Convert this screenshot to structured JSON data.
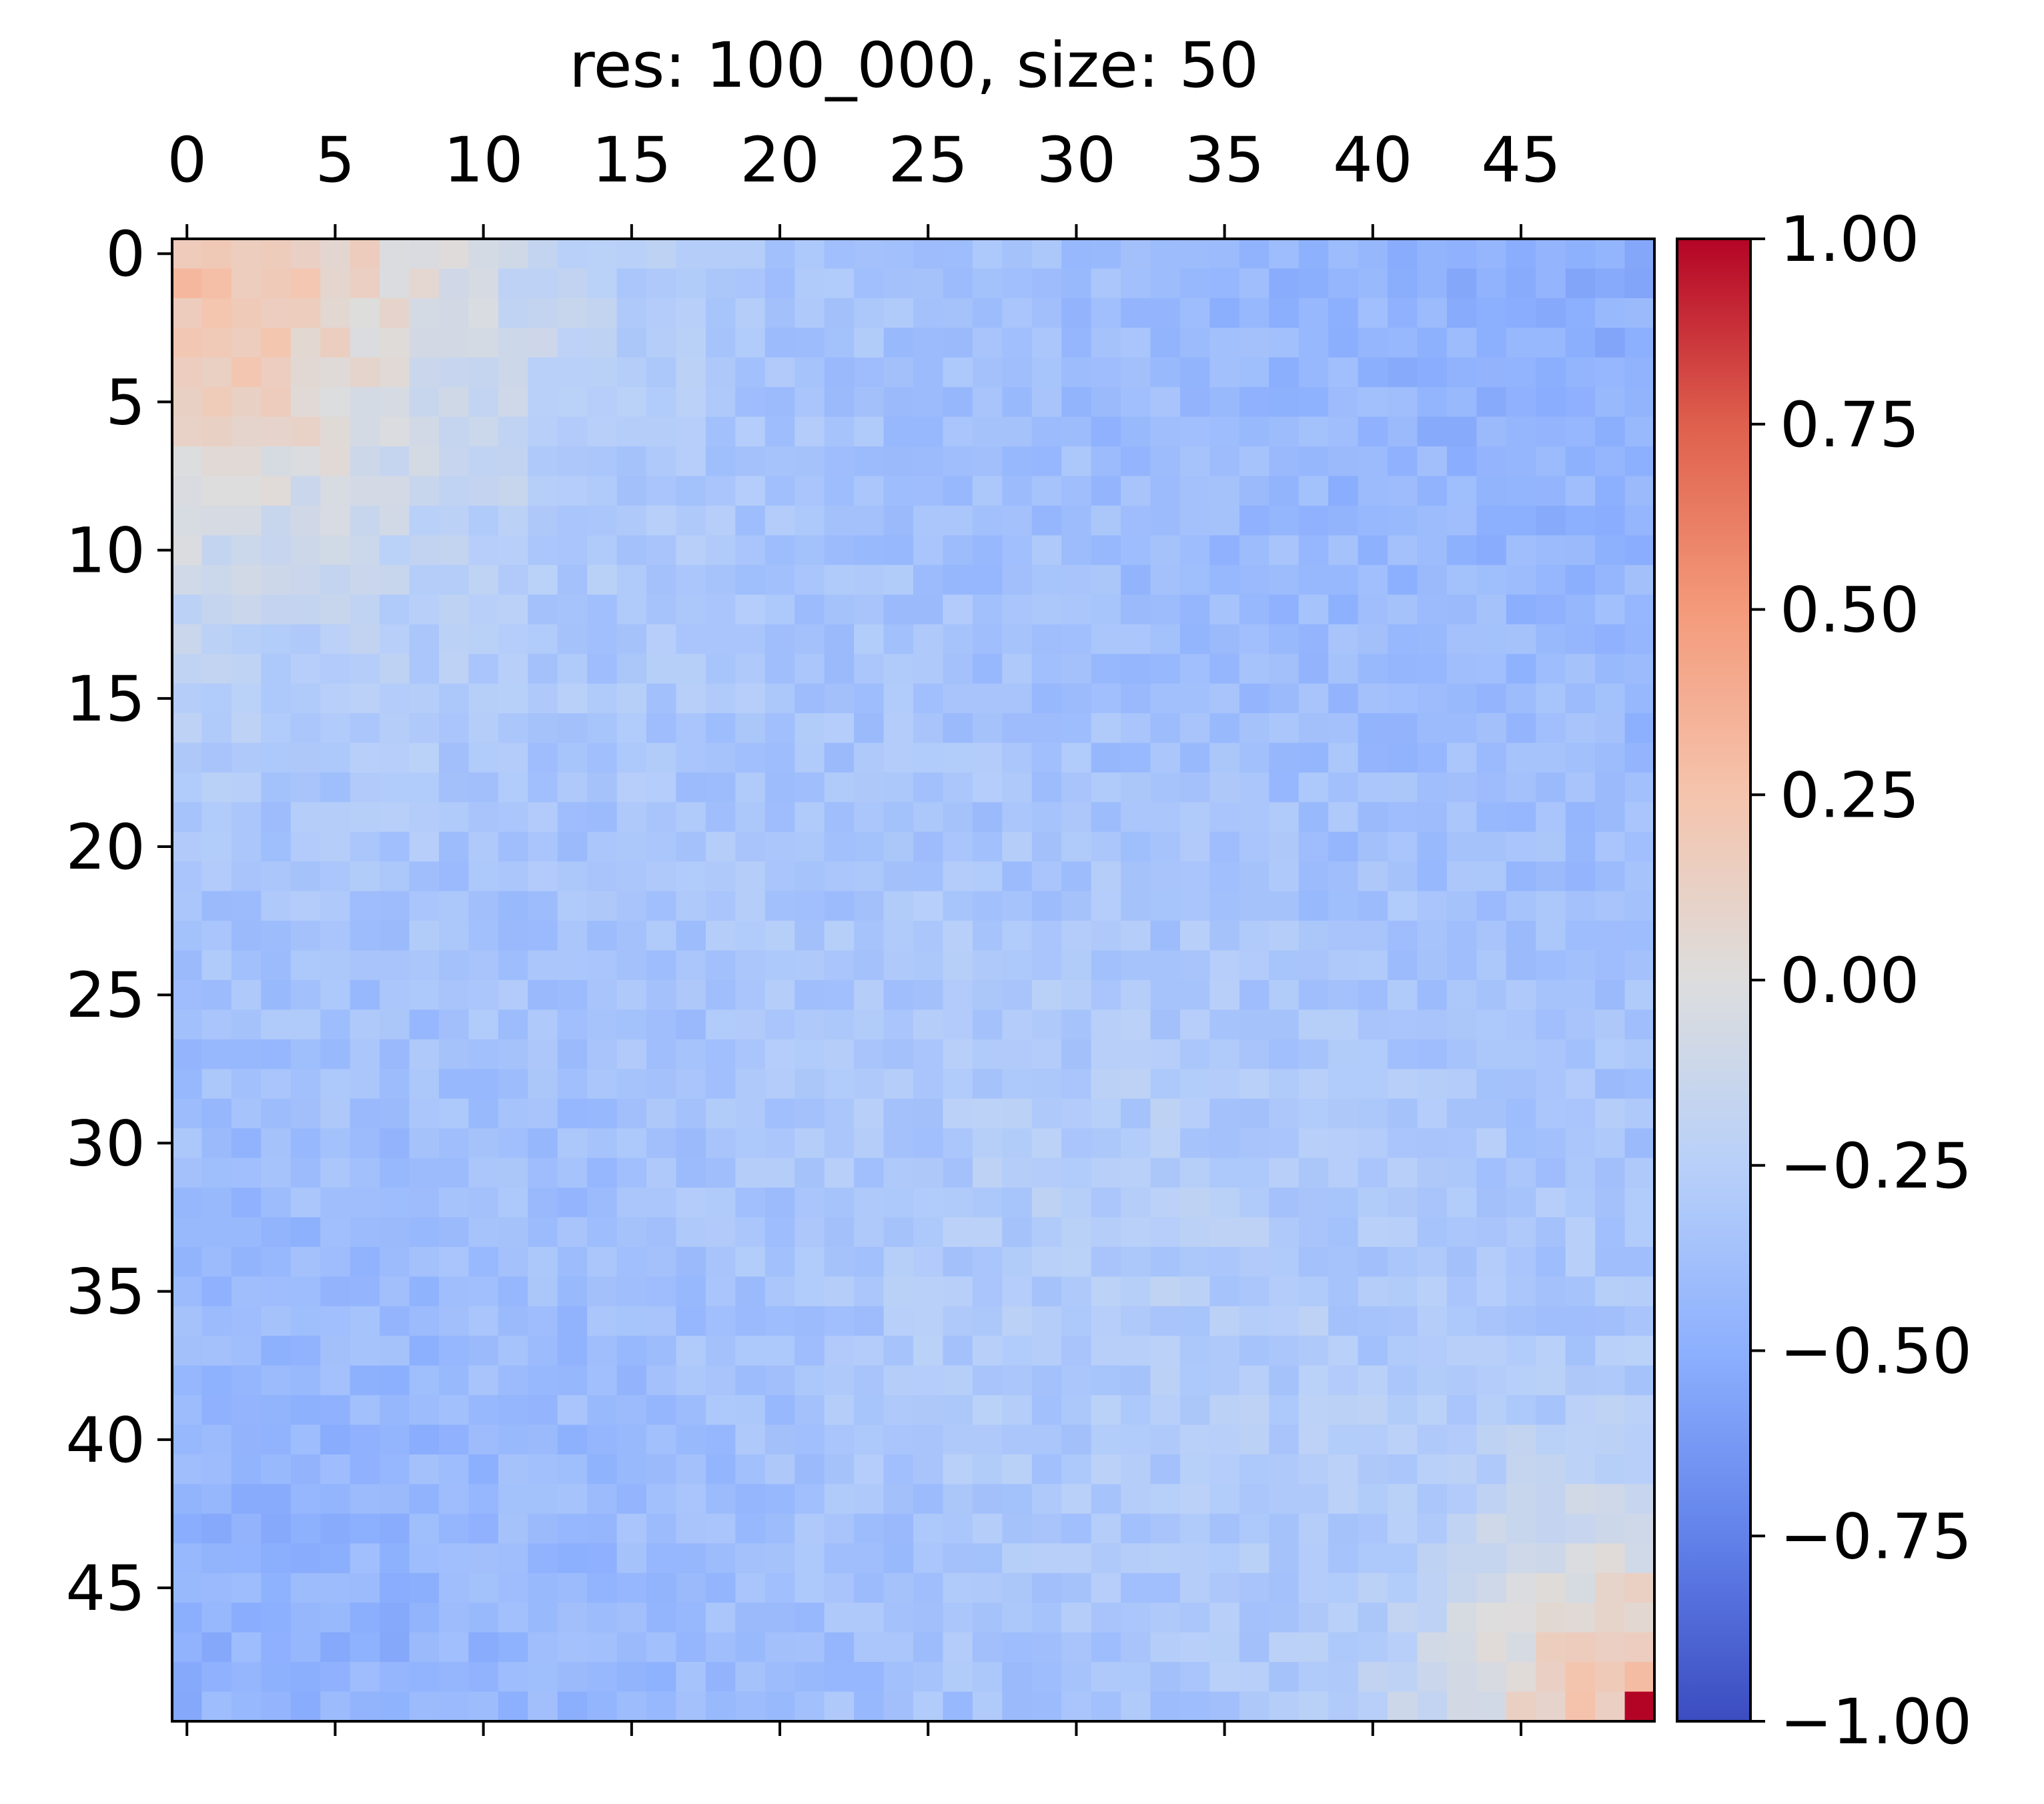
{
  "chart_data": {
    "type": "heatmap",
    "title": "res: 100_000, size: 50",
    "xlabel": "",
    "ylabel": "",
    "rows": 50,
    "cols": 50,
    "x_ticks": [
      0,
      5,
      10,
      15,
      20,
      25,
      30,
      35,
      40,
      45
    ],
    "y_ticks": [
      0,
      5,
      10,
      15,
      20,
      25,
      30,
      35,
      40,
      45
    ],
    "x_tick_position": "top",
    "colormap": "coolwarm",
    "vmin": -1.0,
    "vmax": 1.0,
    "colorbar_ticks": [
      "1.00",
      "0.75",
      "0.50",
      "0.25",
      "0.00",
      "−0.25",
      "−0.50",
      "−0.75",
      "−1.00"
    ],
    "colorbar_tick_values": [
      1.0,
      0.75,
      0.5,
      0.25,
      0.0,
      -0.25,
      -0.5,
      -0.75,
      -1.0
    ],
    "colorbar_placement": "right",
    "grid": false,
    "cell_summary": {
      "top_left_block_rows_0_9_cols_0_10": 0.25,
      "top_right_block_rows_0_15_cols_28_49": -0.45,
      "middle_band_rows_15_30": -0.3,
      "bottom_left_block_rows_30_49_cols_0_20": -0.45,
      "bottom_right_block_rows_42_49_cols_44_49": 0.15,
      "cell_49_49": 1.0
    }
  }
}
